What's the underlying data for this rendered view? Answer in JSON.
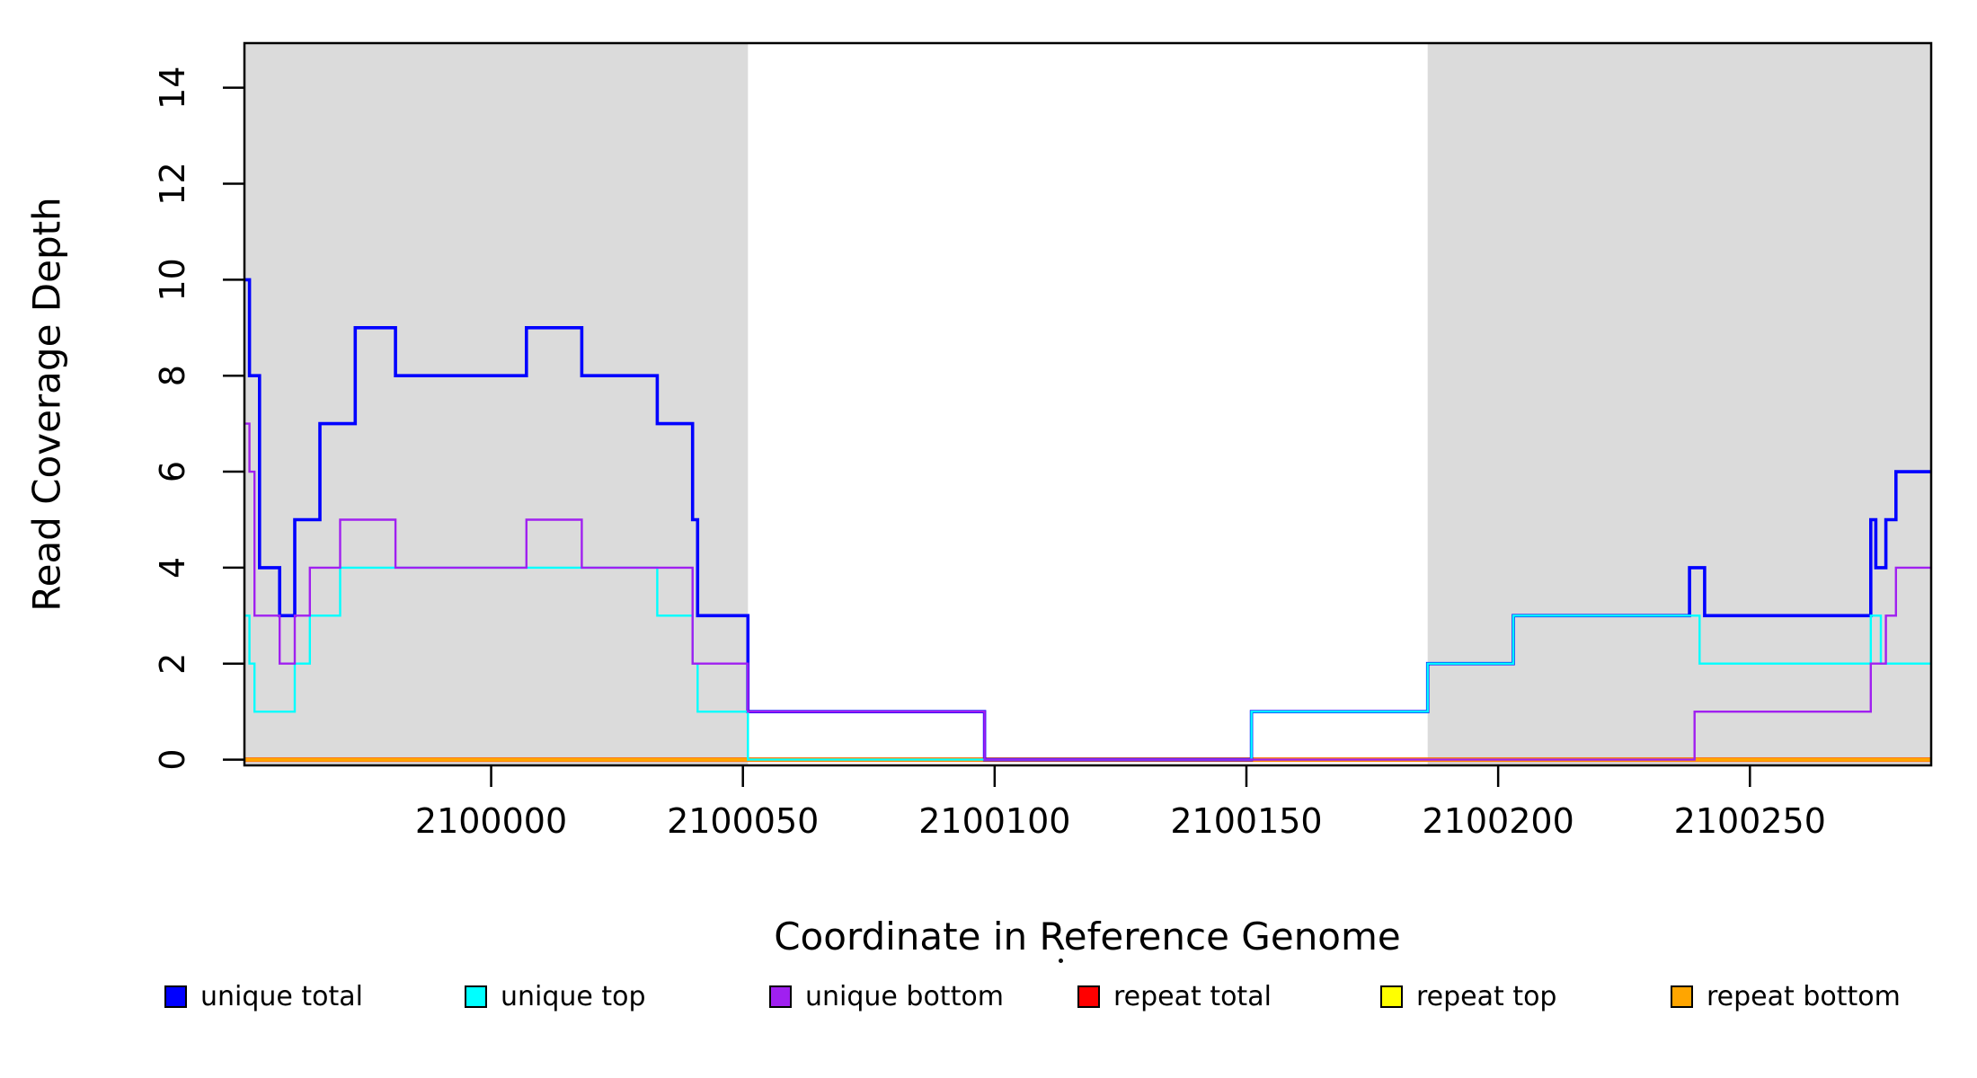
{
  "chart_data": {
    "type": "step-line",
    "xlabel": "Coordinate in Reference Genome",
    "ylabel": "Read Coverage Depth",
    "x_range": [
      2099951,
      2100286
    ],
    "y_range": [
      -0.12,
      14.93
    ],
    "x_ticks": [
      2100000,
      2100050,
      2100100,
      2100150,
      2100200,
      2100250
    ],
    "y_ticks": [
      0,
      2,
      4,
      6,
      8,
      10,
      12,
      14
    ],
    "grid": false,
    "shaded_region_color": "#DBDBDB",
    "shaded_regions": [
      [
        2099951,
        2100051
      ],
      [
        2100186,
        2100286
      ]
    ],
    "series": [
      {
        "name": "unique total",
        "color": "#0000FF",
        "points": [
          [
            2099951,
            10
          ],
          [
            2099952,
            8
          ],
          [
            2099954,
            4
          ],
          [
            2099958,
            3
          ],
          [
            2099961,
            5
          ],
          [
            2099966,
            7
          ],
          [
            2099973,
            9
          ],
          [
            2099981,
            8
          ],
          [
            2100007,
            9
          ],
          [
            2100018,
            8
          ],
          [
            2100033,
            7
          ],
          [
            2100040,
            5
          ],
          [
            2100041,
            3
          ],
          [
            2100051,
            1
          ],
          [
            2100098,
            0
          ],
          [
            2100151,
            1
          ],
          [
            2100186,
            2
          ],
          [
            2100203,
            3
          ],
          [
            2100238,
            4
          ],
          [
            2100241,
            3
          ],
          [
            2100274,
            5
          ],
          [
            2100275,
            4
          ],
          [
            2100277,
            5
          ],
          [
            2100279,
            6
          ],
          [
            2100286,
            6
          ]
        ]
      },
      {
        "name": "unique top",
        "color": "#00FFFF",
        "points": [
          [
            2099951,
            3
          ],
          [
            2099952,
            2
          ],
          [
            2099953,
            1
          ],
          [
            2099961,
            2
          ],
          [
            2099964,
            3
          ],
          [
            2099970,
            4
          ],
          [
            2100033,
            3
          ],
          [
            2100040,
            2
          ],
          [
            2100041,
            1
          ],
          [
            2100051,
            0
          ],
          [
            2100151,
            1
          ],
          [
            2100186,
            2
          ],
          [
            2100203,
            3
          ],
          [
            2100240,
            2
          ],
          [
            2100274,
            3
          ],
          [
            2100276,
            2
          ],
          [
            2100286,
            2
          ]
        ]
      },
      {
        "name": "unique bottom",
        "color": "#A020F0",
        "points": [
          [
            2099951,
            7
          ],
          [
            2099952,
            6
          ],
          [
            2099953,
            3
          ],
          [
            2099958,
            2
          ],
          [
            2099961,
            3
          ],
          [
            2099964,
            4
          ],
          [
            2099970,
            5
          ],
          [
            2099981,
            4
          ],
          [
            2100007,
            5
          ],
          [
            2100018,
            4
          ],
          [
            2100040,
            2
          ],
          [
            2100051,
            1
          ],
          [
            2100098,
            0
          ],
          [
            2100239,
            1
          ],
          [
            2100274,
            2
          ],
          [
            2100277,
            3
          ],
          [
            2100279,
            4
          ],
          [
            2100286,
            4
          ]
        ]
      },
      {
        "name": "repeat total",
        "color": "#FF0000",
        "points": [
          [
            2099951,
            0
          ],
          [
            2100286,
            0
          ]
        ]
      },
      {
        "name": "repeat top",
        "color": "#FFFF00",
        "points": [
          [
            2099951,
            0
          ],
          [
            2100286,
            0
          ]
        ]
      },
      {
        "name": "repeat bottom",
        "color": "#FFA500",
        "points": [
          [
            2099951,
            0
          ],
          [
            2100286,
            0
          ]
        ]
      }
    ],
    "legend_position": "bottom"
  },
  "titles": {
    "x_axis": "Coordinate in Reference Genome",
    "y_axis": "Read Coverage Depth"
  },
  "legend": {
    "items": [
      {
        "label": "unique total",
        "color": "#0000FF"
      },
      {
        "label": "unique top",
        "color": "#00FFFF"
      },
      {
        "label": "unique bottom",
        "color": "#A020F0"
      },
      {
        "label": "repeat total",
        "color": "#FF0000"
      },
      {
        "label": "repeat top",
        "color": "#FFFF00"
      },
      {
        "label": "repeat bottom",
        "color": "#FFA500"
      }
    ]
  }
}
